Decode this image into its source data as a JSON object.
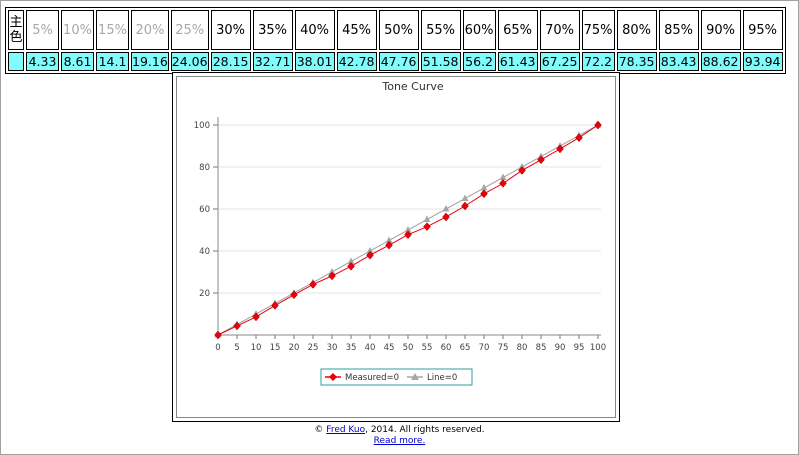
{
  "table": {
    "row_header": "主色",
    "columns": [
      {
        "label": "5%",
        "value": "4.33",
        "tone": "light"
      },
      {
        "label": "10%",
        "value": "8.61",
        "tone": "light"
      },
      {
        "label": "15%",
        "value": "14.1",
        "tone": "light"
      },
      {
        "label": "20%",
        "value": "19.16",
        "tone": "light"
      },
      {
        "label": "25%",
        "value": "24.06",
        "tone": "light"
      },
      {
        "label": "30%",
        "value": "28.15",
        "tone": "dark"
      },
      {
        "label": "35%",
        "value": "32.71",
        "tone": "dark"
      },
      {
        "label": "40%",
        "value": "38.01",
        "tone": "dark"
      },
      {
        "label": "45%",
        "value": "42.78",
        "tone": "dark"
      },
      {
        "label": "50%",
        "value": "47.76",
        "tone": "dark"
      },
      {
        "label": "55%",
        "value": "51.58",
        "tone": "dark"
      },
      {
        "label": "60%",
        "value": "56.2",
        "tone": "dark"
      },
      {
        "label": "65%",
        "value": "61.43",
        "tone": "dark"
      },
      {
        "label": "70%",
        "value": "67.25",
        "tone": "dark"
      },
      {
        "label": "75%",
        "value": "72.2",
        "tone": "dark"
      },
      {
        "label": "80%",
        "value": "78.35",
        "tone": "dark"
      },
      {
        "label": "85%",
        "value": "83.43",
        "tone": "dark"
      },
      {
        "label": "90%",
        "value": "88.62",
        "tone": "dark"
      },
      {
        "label": "95%",
        "value": "93.94",
        "tone": "dark"
      }
    ]
  },
  "chart_data": {
    "type": "line",
    "title": "Tone Curve",
    "xlabel": "",
    "ylabel": "",
    "x": [
      0,
      5,
      10,
      15,
      20,
      25,
      30,
      35,
      40,
      45,
      50,
      55,
      60,
      65,
      70,
      75,
      80,
      85,
      90,
      95,
      100
    ],
    "x_ticks": [
      0,
      5,
      10,
      15,
      20,
      25,
      30,
      35,
      40,
      45,
      50,
      55,
      60,
      65,
      70,
      75,
      80,
      85,
      90,
      95,
      100
    ],
    "y_ticks": [
      20,
      40,
      60,
      80,
      100
    ],
    "xlim": [
      0,
      100
    ],
    "ylim": [
      0,
      100
    ],
    "grid": true,
    "legend_position": "bottom",
    "series": [
      {
        "name": "Measured=0",
        "color": "#e8000b",
        "marker": "diamond",
        "values": [
          0,
          4.33,
          8.61,
          14.1,
          19.16,
          24.06,
          28.15,
          32.71,
          38.01,
          42.78,
          47.76,
          51.58,
          56.2,
          61.43,
          67.25,
          72.2,
          78.35,
          83.43,
          88.62,
          93.94,
          100
        ]
      },
      {
        "name": "Line=0",
        "color": "#a6a6a6",
        "marker": "triangle",
        "values": [
          0,
          5,
          10,
          15,
          20,
          25,
          30,
          35,
          40,
          45,
          50,
          55,
          60,
          65,
          70,
          75,
          80,
          85,
          90,
          95,
          100
        ]
      }
    ]
  },
  "footer": {
    "copyright_symbol": "©",
    "author": "Fred Kuo",
    "rest": ", 2014. All rights reserved.",
    "read_more": "Read more."
  }
}
